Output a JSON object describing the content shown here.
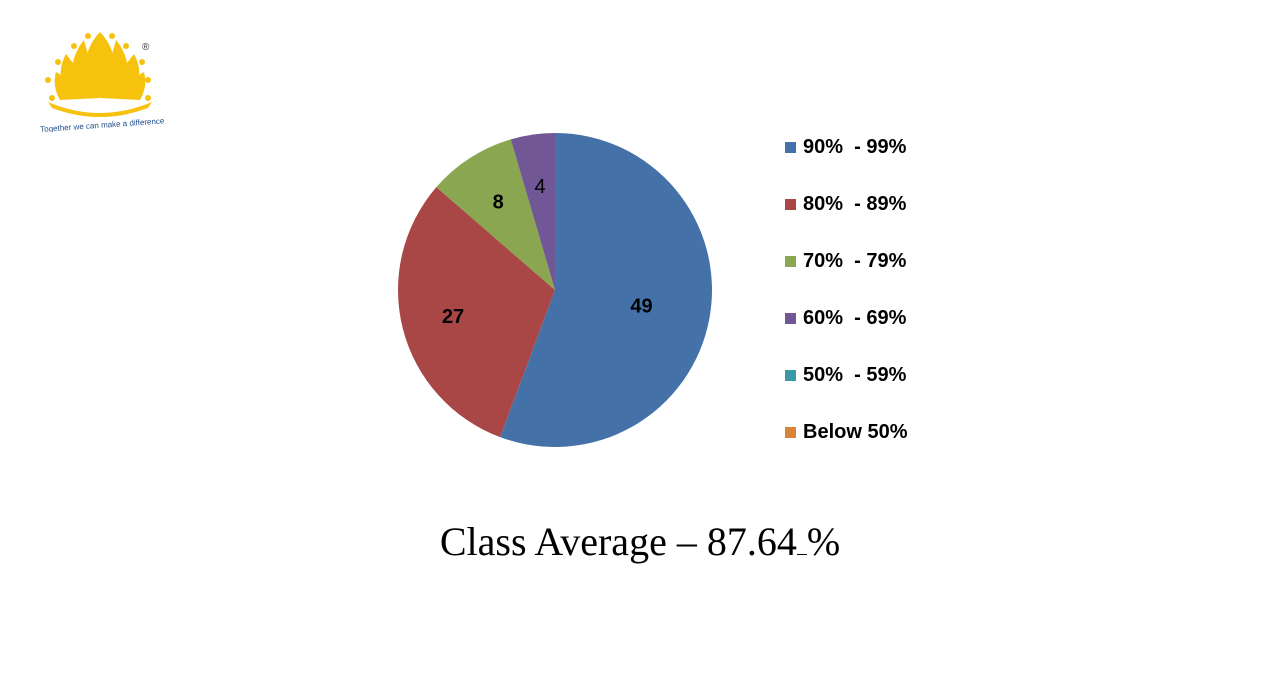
{
  "logo": {
    "tagline": "Together we can make a difference",
    "registered_mark": "®",
    "color": "#F7C20E"
  },
  "chart_data": {
    "type": "pie",
    "categories": [
      "90%  - 99%",
      "80%  - 89%",
      "70%  - 79%",
      "60%  - 69%",
      "50%  - 59%",
      "Below 50%"
    ],
    "values": [
      49,
      27,
      8,
      4,
      0,
      0
    ],
    "data_labels": [
      "49",
      "27",
      "8",
      "4",
      "",
      ""
    ],
    "colors": [
      "#4472A8",
      "#A94646",
      "#8AA650",
      "#725796",
      "#3C97A9",
      "#DA843A"
    ],
    "legend_position": "right",
    "title": ""
  },
  "footer": {
    "class_average_label": "Class Average – 87.64",
    "class_average_unit": "%"
  }
}
